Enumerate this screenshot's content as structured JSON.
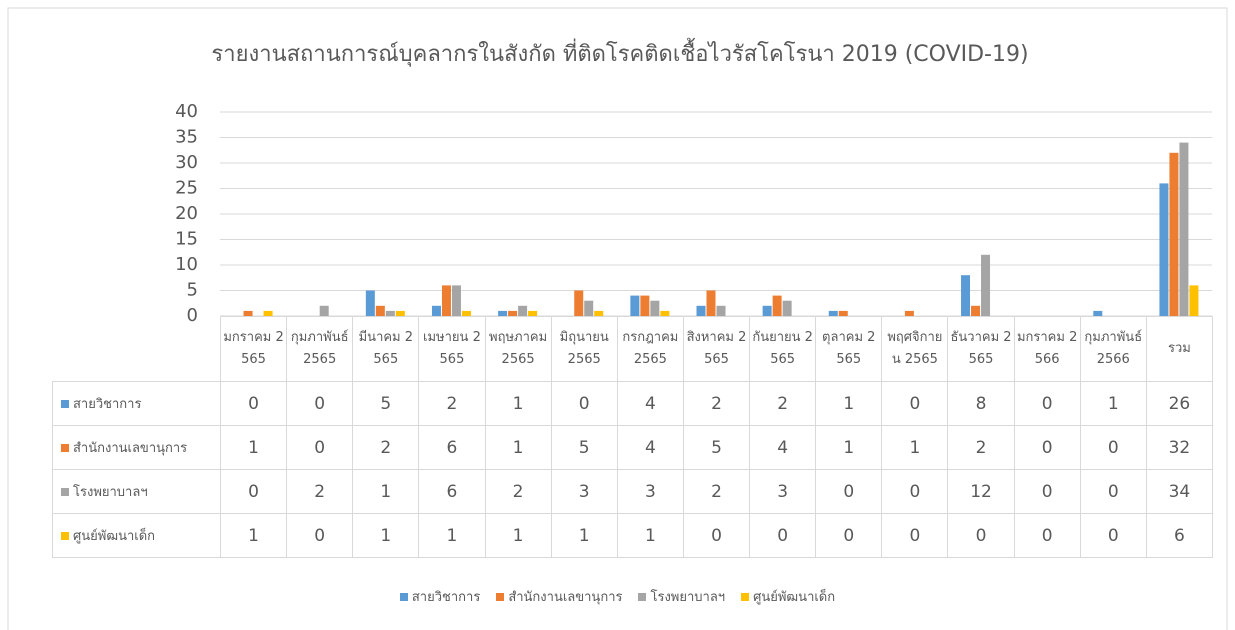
{
  "chart_data": {
    "type": "bar",
    "title": "รายงานสถานการณ์บุคลากรในสังกัด ที่ติดโรคติดเชื้อไวรัสโคโรนา 2019 (COVID-19)",
    "categories": [
      "มกราคม 2565",
      "กุมภาพันธ์ 2565",
      "มีนาคม 2565",
      "เมษายน 2565",
      "พฤษภาคม 2565",
      "มิถุนายน 2565",
      "กรกฎาคม 2565",
      "สิงหาคม 2565",
      "กันยายน 2565",
      "ตุลาคม 2565",
      "พฤศจิกายน 2565",
      "ธันวาคม 2565",
      "มกราคม 2566",
      "กุมภาพันธ์ 2566",
      "รวม"
    ],
    "series": [
      {
        "name": "สายวิชาการ",
        "color": "#5b9bd5",
        "values": [
          0,
          0,
          5,
          2,
          1,
          0,
          4,
          2,
          2,
          1,
          0,
          8,
          0,
          1,
          26
        ]
      },
      {
        "name": "สำนักงานเลขานุการ",
        "color": "#ed7d31",
        "values": [
          1,
          0,
          2,
          6,
          1,
          5,
          4,
          5,
          4,
          1,
          1,
          2,
          0,
          0,
          32
        ]
      },
      {
        "name": "โรงพยาบาลฯ",
        "color": "#a5a5a5",
        "values": [
          0,
          2,
          1,
          6,
          2,
          3,
          3,
          2,
          3,
          0,
          0,
          12,
          0,
          0,
          34
        ]
      },
      {
        "name": "ศูนย์พัฒนาเด็ก",
        "color": "#ffc000",
        "values": [
          1,
          0,
          1,
          1,
          1,
          1,
          1,
          0,
          0,
          0,
          0,
          0,
          0,
          0,
          6
        ]
      }
    ],
    "ylim": [
      0,
      40
    ],
    "yticks": [
      0,
      5,
      10,
      15,
      20,
      25,
      30,
      35,
      40
    ],
    "grid": true,
    "legend": "bottom"
  }
}
